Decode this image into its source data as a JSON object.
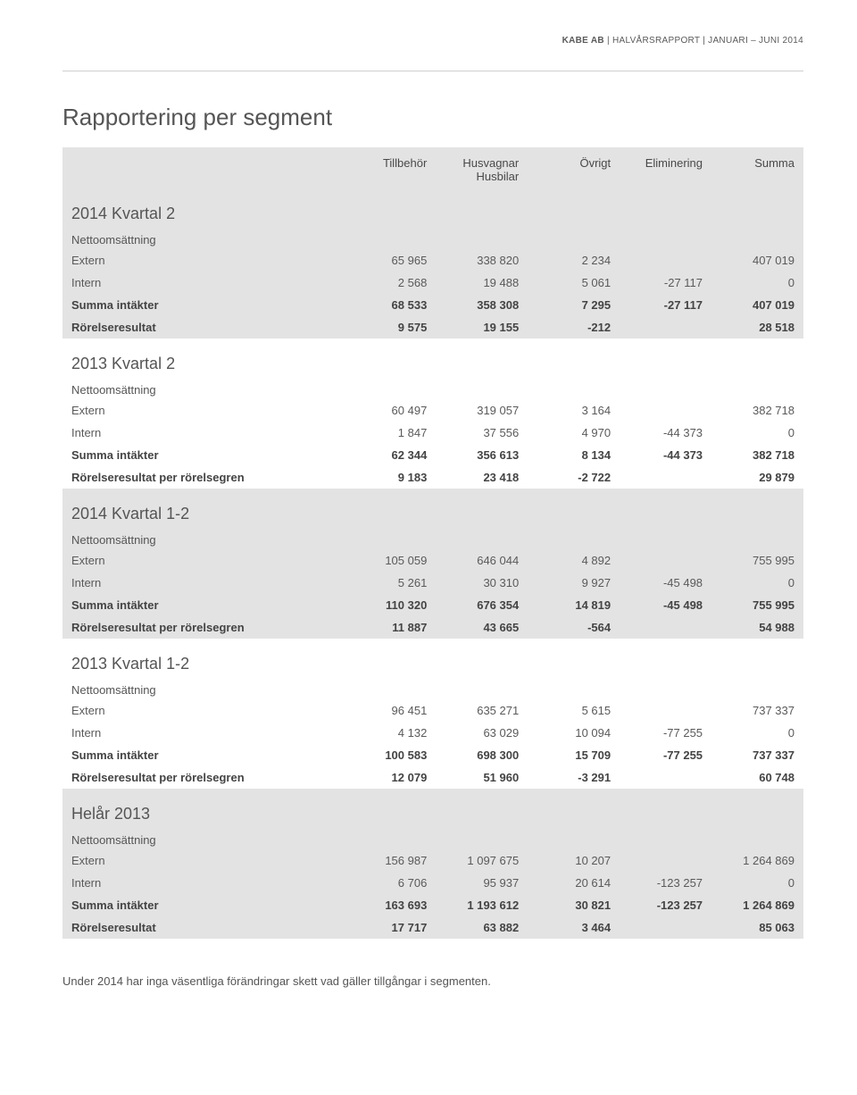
{
  "doc_header_bold": "KABE AB",
  "doc_header_rest": "| HALVÅRSRAPPORT | JANUARI – JUNI 2014",
  "page_title": "Rapportering per segment",
  "columns": [
    "",
    "Tillbehör",
    "Husvagnar",
    "Övrigt",
    "Eliminering",
    "Summa"
  ],
  "col2_sub": "Husbilar",
  "row_labels": {
    "netto": "Nettoomsättning",
    "extern": "Extern",
    "intern": "Intern",
    "summa_int": "Summa intäkter",
    "rorelse": "Rörelseresultat",
    "rorelse_seg": "Rörelseresultat per rörelsegren"
  },
  "sections": [
    {
      "title": "2014 Kvartal 2",
      "shaded": true,
      "rows": [
        {
          "type": "subhead"
        },
        {
          "label": "extern",
          "v": [
            "65 965",
            "338 820",
            "2 234",
            "",
            "407 019"
          ]
        },
        {
          "label": "intern",
          "v": [
            "2 568",
            "19 488",
            "5 061",
            "-27 117",
            "0"
          ]
        },
        {
          "label": "summa_int",
          "bold": true,
          "v": [
            "68 533",
            "358 308",
            "7 295",
            "-27 117",
            "407 019"
          ]
        },
        {
          "label": "rorelse",
          "bold": true,
          "v": [
            "9 575",
            "19 155",
            "-212",
            "",
            "28 518"
          ]
        }
      ]
    },
    {
      "title": "2013 Kvartal 2",
      "shaded": false,
      "rows": [
        {
          "type": "subhead"
        },
        {
          "label": "extern",
          "v": [
            "60 497",
            "319 057",
            "3 164",
            "",
            "382 718"
          ]
        },
        {
          "label": "intern",
          "v": [
            "1 847",
            "37 556",
            "4 970",
            "-44 373",
            "0"
          ]
        },
        {
          "label": "summa_int",
          "bold": true,
          "v": [
            "62 344",
            "356 613",
            "8 134",
            "-44 373",
            "382 718"
          ]
        },
        {
          "label": "rorelse_seg",
          "bold": true,
          "v": [
            "9 183",
            "23 418",
            "-2 722",
            "",
            "29 879"
          ]
        }
      ]
    },
    {
      "title": "2014 Kvartal 1-2",
      "shaded": true,
      "rows": [
        {
          "type": "subhead"
        },
        {
          "label": "extern",
          "v": [
            "105 059",
            "646 044",
            "4 892",
            "",
            "755 995"
          ]
        },
        {
          "label": "intern",
          "v": [
            "5 261",
            "30 310",
            "9 927",
            "-45 498",
            "0"
          ]
        },
        {
          "label": "summa_int",
          "bold": true,
          "v": [
            "110 320",
            "676 354",
            "14 819",
            "-45 498",
            "755 995"
          ]
        },
        {
          "label": "rorelse_seg",
          "bold": true,
          "v": [
            "11 887",
            "43 665",
            "-564",
            "",
            "54 988"
          ]
        }
      ]
    },
    {
      "title": "2013 Kvartal 1-2",
      "shaded": false,
      "rows": [
        {
          "type": "subhead"
        },
        {
          "label": "extern",
          "v": [
            "96 451",
            "635 271",
            "5 615",
            "",
            "737 337"
          ]
        },
        {
          "label": "intern",
          "v": [
            "4 132",
            "63 029",
            "10 094",
            "-77 255",
            "0"
          ]
        },
        {
          "label": "summa_int",
          "bold": true,
          "v": [
            "100 583",
            "698 300",
            "15 709",
            "-77 255",
            "737 337"
          ]
        },
        {
          "label": "rorelse_seg",
          "bold": true,
          "v": [
            "12 079",
            "51 960",
            "-3 291",
            "",
            "60 748"
          ]
        }
      ]
    },
    {
      "title": "Helår 2013",
      "shaded": true,
      "rows": [
        {
          "type": "subhead"
        },
        {
          "label": "extern",
          "v": [
            "156 987",
            "1 097 675",
            "10 207",
            "",
            "1 264 869"
          ]
        },
        {
          "label": "intern",
          "v": [
            "6 706",
            "95 937",
            "20 614",
            "-123 257",
            "0"
          ]
        },
        {
          "label": "summa_int",
          "bold": true,
          "v": [
            "163 693",
            "1 193 612",
            "30 821",
            "-123 257",
            "1 264 869"
          ]
        },
        {
          "label": "rorelse",
          "bold": true,
          "v": [
            "17 717",
            "63 882",
            "3 464",
            "",
            "85 063"
          ]
        }
      ]
    }
  ],
  "footnote": "Under 2014 har inga väsentliga förändringar skett vad gäller tillgångar i segmenten.",
  "colors": {
    "shaded_bg": "#e3e3e3",
    "text": "#5a5a5a",
    "bold_text": "#444444",
    "page_bg": "#ffffff",
    "rule": "#cfcfcf"
  },
  "typography": {
    "body_fontsize": 13,
    "h1_fontsize": 26,
    "section_title_fontsize": 18,
    "header_small_fontsize": 10
  }
}
